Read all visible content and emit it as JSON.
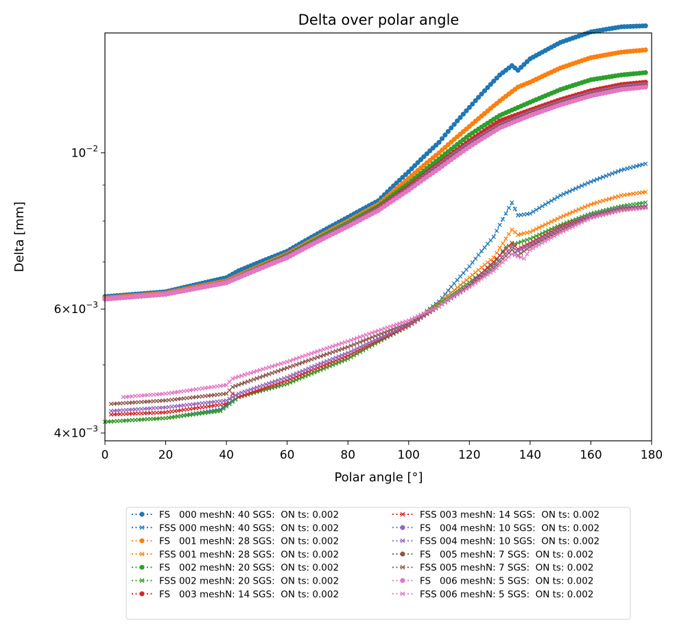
{
  "chart_data": {
    "type": "line",
    "title": "Delta over polar angle",
    "xlabel": "Polar angle [°]",
    "ylabel": "Delta [mm]",
    "xlim": [
      0,
      180
    ],
    "ylim": [
      0.0039,
      0.0148
    ],
    "yscale": "log",
    "xticks": [
      "0",
      "20",
      "40",
      "60",
      "80",
      "100",
      "120",
      "140",
      "160",
      "180"
    ],
    "yticks": [
      {
        "value": 0.004,
        "mant": "4",
        "exp": "−3"
      },
      {
        "value": 0.006,
        "mant": "6",
        "exp": "−3"
      },
      {
        "value": 0.01,
        "mant": "10",
        "exp": "−2"
      }
    ],
    "grid": false,
    "legend_position": "below",
    "series": [
      {
        "name": "FS   000 meshN: 40 SGS:  ON ts: 0.002",
        "color": "#1f77b4",
        "marker": "dot",
        "points": [
          [
            0,
            0.00625
          ],
          [
            20,
            0.00635
          ],
          [
            40,
            0.00665
          ],
          [
            44,
            0.0068
          ],
          [
            60,
            0.00725
          ],
          [
            80,
            0.0081
          ],
          [
            90,
            0.00855
          ],
          [
            100,
            0.0094
          ],
          [
            110,
            0.01035
          ],
          [
            120,
            0.0116
          ],
          [
            130,
            0.0129
          ],
          [
            134,
            0.0133
          ],
          [
            136,
            0.0131
          ],
          [
            140,
            0.0136
          ],
          [
            150,
            0.01435
          ],
          [
            160,
            0.01485
          ],
          [
            170,
            0.0151
          ],
          [
            178,
            0.01515
          ]
        ]
      },
      {
        "name": "FSS 000 meshN: 40 SGS:  ON ts: 0.002",
        "color": "#1f77b4",
        "marker": "x",
        "points": [
          [
            0,
            0.00415
          ],
          [
            20,
            0.0042
          ],
          [
            38,
            0.00432
          ],
          [
            42,
            0.00445
          ],
          [
            44,
            0.0045
          ],
          [
            60,
            0.0047
          ],
          [
            80,
            0.0051
          ],
          [
            100,
            0.00568
          ],
          [
            110,
            0.00615
          ],
          [
            120,
            0.0069
          ],
          [
            128,
            0.0076
          ],
          [
            134,
            0.0085
          ],
          [
            136,
            0.00815
          ],
          [
            140,
            0.0082
          ],
          [
            150,
            0.0087
          ],
          [
            160,
            0.0091
          ],
          [
            170,
            0.00945
          ],
          [
            178,
            0.00965
          ]
        ]
      },
      {
        "name": "FS   001 meshN: 28 SGS:  ON ts: 0.002",
        "color": "#ff7f0e",
        "marker": "dot",
        "points": [
          [
            0,
            0.00622
          ],
          [
            20,
            0.00632
          ],
          [
            40,
            0.00658
          ],
          [
            60,
            0.00718
          ],
          [
            80,
            0.008
          ],
          [
            90,
            0.00845
          ],
          [
            100,
            0.0092
          ],
          [
            110,
            0.01
          ],
          [
            120,
            0.0109
          ],
          [
            130,
            0.01185
          ],
          [
            136,
            0.0124
          ],
          [
            140,
            0.0126
          ],
          [
            150,
            0.0132
          ],
          [
            160,
            0.01365
          ],
          [
            170,
            0.0139
          ],
          [
            178,
            0.014
          ]
        ]
      },
      {
        "name": "FSS 001 meshN: 28 SGS:  ON ts: 0.002",
        "color": "#ff7f0e",
        "marker": "x",
        "points": [
          [
            0,
            0.00415
          ],
          [
            20,
            0.0042
          ],
          [
            38,
            0.0043
          ],
          [
            42,
            0.00443
          ],
          [
            44,
            0.0045
          ],
          [
            60,
            0.0047
          ],
          [
            80,
            0.0051
          ],
          [
            100,
            0.00568
          ],
          [
            110,
            0.00612
          ],
          [
            120,
            0.00665
          ],
          [
            128,
            0.0071
          ],
          [
            134,
            0.00778
          ],
          [
            136,
            0.00765
          ],
          [
            140,
            0.00772
          ],
          [
            150,
            0.0081
          ],
          [
            160,
            0.00845
          ],
          [
            170,
            0.0087
          ],
          [
            178,
            0.0088
          ]
        ]
      },
      {
        "name": "FS   002 meshN: 20 SGS:  ON ts: 0.002",
        "color": "#2ca02c",
        "marker": "dot",
        "points": [
          [
            0,
            0.0062
          ],
          [
            20,
            0.0063
          ],
          [
            40,
            0.00655
          ],
          [
            60,
            0.00715
          ],
          [
            80,
            0.00795
          ],
          [
            90,
            0.0084
          ],
          [
            100,
            0.00905
          ],
          [
            110,
            0.0098
          ],
          [
            120,
            0.0106
          ],
          [
            130,
            0.0113
          ],
          [
            140,
            0.0118
          ],
          [
            150,
            0.0123
          ],
          [
            160,
            0.0127
          ],
          [
            170,
            0.0129
          ],
          [
            178,
            0.013
          ]
        ]
      },
      {
        "name": "FSS 002 meshN: 20 SGS:  ON ts: 0.002",
        "color": "#2ca02c",
        "marker": "x",
        "points": [
          [
            0,
            0.00415
          ],
          [
            20,
            0.0042
          ],
          [
            38,
            0.0043
          ],
          [
            42,
            0.00443
          ],
          [
            44,
            0.0045
          ],
          [
            60,
            0.0047
          ],
          [
            80,
            0.0051
          ],
          [
            100,
            0.00568
          ],
          [
            110,
            0.0061
          ],
          [
            120,
            0.00655
          ],
          [
            128,
            0.00695
          ],
          [
            132,
            0.00735
          ],
          [
            136,
            0.00745
          ],
          [
            140,
            0.00755
          ],
          [
            150,
            0.0079
          ],
          [
            160,
            0.0082
          ],
          [
            170,
            0.0084
          ],
          [
            178,
            0.0085
          ]
        ]
      },
      {
        "name": "FS   003 meshN: 14 SGS:  ON ts: 0.002",
        "color": "#d62728",
        "marker": "dot",
        "points": [
          [
            0,
            0.0062
          ],
          [
            20,
            0.0063
          ],
          [
            40,
            0.00655
          ],
          [
            60,
            0.00713
          ],
          [
            80,
            0.0079
          ],
          [
            90,
            0.00835
          ],
          [
            100,
            0.00895
          ],
          [
            110,
            0.00965
          ],
          [
            120,
            0.0104
          ],
          [
            130,
            0.0111
          ],
          [
            140,
            0.0115
          ],
          [
            150,
            0.0119
          ],
          [
            160,
            0.01225
          ],
          [
            170,
            0.0125
          ],
          [
            178,
            0.0126
          ]
        ]
      },
      {
        "name": "FSS 003 meshN: 14 SGS:  ON ts: 0.002",
        "color": "#d62728",
        "marker": "x",
        "points": [
          [
            2,
            0.00425
          ],
          [
            20,
            0.00428
          ],
          [
            40,
            0.0044
          ],
          [
            42,
            0.00455
          ],
          [
            44,
            0.0045
          ],
          [
            60,
            0.00475
          ],
          [
            80,
            0.00515
          ],
          [
            100,
            0.00568
          ],
          [
            110,
            0.00605
          ],
          [
            120,
            0.0065
          ],
          [
            128,
            0.007
          ],
          [
            134,
            0.00745
          ],
          [
            136,
            0.0073
          ],
          [
            140,
            0.00745
          ],
          [
            150,
            0.00785
          ],
          [
            160,
            0.00815
          ],
          [
            170,
            0.00835
          ],
          [
            178,
            0.0084
          ]
        ]
      },
      {
        "name": "FS   004 meshN: 10 SGS:  ON ts: 0.002",
        "color": "#9467bd",
        "marker": "dot",
        "points": [
          [
            0,
            0.0062
          ],
          [
            20,
            0.0063
          ],
          [
            40,
            0.00655
          ],
          [
            60,
            0.00712
          ],
          [
            80,
            0.0079
          ],
          [
            90,
            0.00832
          ],
          [
            100,
            0.0089
          ],
          [
            110,
            0.0096
          ],
          [
            120,
            0.0103
          ],
          [
            130,
            0.01095
          ],
          [
            140,
            0.0114
          ],
          [
            150,
            0.0118
          ],
          [
            160,
            0.01215
          ],
          [
            170,
            0.0124
          ],
          [
            178,
            0.0125
          ]
        ]
      },
      {
        "name": "FSS 004 meshN: 10 SGS:  ON ts: 0.002",
        "color": "#9467bd",
        "marker": "x",
        "points": [
          [
            2,
            0.0043
          ],
          [
            20,
            0.00435
          ],
          [
            40,
            0.00445
          ],
          [
            44,
            0.00455
          ],
          [
            60,
            0.0048
          ],
          [
            80,
            0.0052
          ],
          [
            100,
            0.0057
          ],
          [
            110,
            0.00605
          ],
          [
            120,
            0.0065
          ],
          [
            128,
            0.0069
          ],
          [
            134,
            0.00735
          ],
          [
            136,
            0.00725
          ],
          [
            140,
            0.0074
          ],
          [
            150,
            0.0078
          ],
          [
            160,
            0.00815
          ],
          [
            170,
            0.00835
          ],
          [
            178,
            0.0084
          ]
        ]
      },
      {
        "name": "FS   005 meshN: 7 SGS:  ON ts: 0.002",
        "color": "#8c564b",
        "marker": "dot",
        "points": [
          [
            0,
            0.0062
          ],
          [
            20,
            0.0063
          ],
          [
            40,
            0.00654
          ],
          [
            60,
            0.0071
          ],
          [
            80,
            0.00788
          ],
          [
            90,
            0.0083
          ],
          [
            100,
            0.00888
          ],
          [
            110,
            0.00955
          ],
          [
            120,
            0.01025
          ],
          [
            130,
            0.0109
          ],
          [
            140,
            0.01135
          ],
          [
            150,
            0.01175
          ],
          [
            160,
            0.0121
          ],
          [
            170,
            0.01235
          ],
          [
            178,
            0.01245
          ]
        ]
      },
      {
        "name": "FSS 005 meshN: 7 SGS:  ON ts: 0.002",
        "color": "#8c564b",
        "marker": "x",
        "points": [
          [
            2,
            0.0044
          ],
          [
            20,
            0.00445
          ],
          [
            40,
            0.00455
          ],
          [
            42,
            0.00465
          ],
          [
            60,
            0.00495
          ],
          [
            80,
            0.0053
          ],
          [
            100,
            0.00573
          ],
          [
            110,
            0.00605
          ],
          [
            120,
            0.00648
          ],
          [
            128,
            0.00685
          ],
          [
            134,
            0.00728
          ],
          [
            136,
            0.00715
          ],
          [
            140,
            0.00735
          ],
          [
            150,
            0.00775
          ],
          [
            160,
            0.00812
          ],
          [
            170,
            0.00832
          ],
          [
            178,
            0.00838
          ]
        ]
      },
      {
        "name": "FS   006 meshN: 5 SGS:  ON ts: 0.002",
        "color": "#e377c2",
        "marker": "dot",
        "points": [
          [
            0,
            0.0062
          ],
          [
            20,
            0.0063
          ],
          [
            40,
            0.00654
          ],
          [
            60,
            0.0071
          ],
          [
            80,
            0.00786
          ],
          [
            90,
            0.00828
          ],
          [
            100,
            0.00885
          ],
          [
            110,
            0.0095
          ],
          [
            120,
            0.0102
          ],
          [
            130,
            0.01085
          ],
          [
            140,
            0.0113
          ],
          [
            150,
            0.0117
          ],
          [
            160,
            0.01205
          ],
          [
            170,
            0.0123
          ],
          [
            178,
            0.0124
          ]
        ]
      },
      {
        "name": "FSS 006 meshN: 5 SGS:  ON ts: 0.002",
        "color": "#e377c2",
        "marker": "x",
        "points": [
          [
            6,
            0.0045
          ],
          [
            20,
            0.00455
          ],
          [
            40,
            0.00468
          ],
          [
            42,
            0.00478
          ],
          [
            60,
            0.00505
          ],
          [
            80,
            0.0054
          ],
          [
            100,
            0.00578
          ],
          [
            110,
            0.00605
          ],
          [
            120,
            0.00645
          ],
          [
            128,
            0.0068
          ],
          [
            134,
            0.00718
          ],
          [
            138,
            0.00708
          ],
          [
            140,
            0.00728
          ],
          [
            150,
            0.0077
          ],
          [
            160,
            0.00808
          ],
          [
            170,
            0.00828
          ],
          [
            178,
            0.00835
          ]
        ]
      }
    ]
  }
}
